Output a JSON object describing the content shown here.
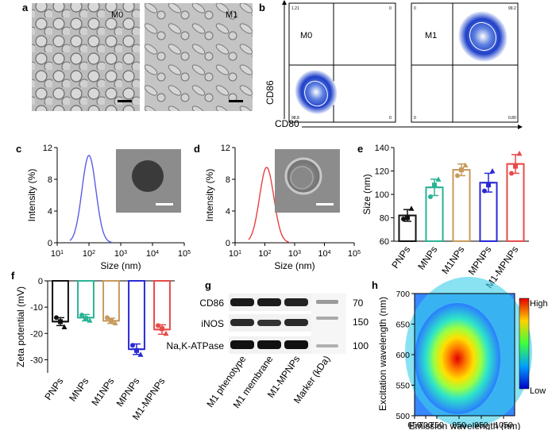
{
  "panels": {
    "a": {
      "label": "a",
      "images": [
        {
          "tag": "M0"
        },
        {
          "tag": "M1"
        }
      ]
    },
    "b": {
      "label": "b",
      "ylabel": "CD86",
      "xlabel": "CD80",
      "plots": [
        {
          "tag": "M0",
          "q_tl": "1.21",
          "q_tr": "0",
          "q_bl": "98.8",
          "q_br": "0"
        },
        {
          "tag": "M1",
          "q_tl": "0",
          "q_tr": "99.2",
          "q_bl": "0",
          "q_br": "0.80"
        }
      ]
    },
    "c": {
      "label": "c"
    },
    "d": {
      "label": "d"
    },
    "e": {
      "label": "e"
    },
    "f": {
      "label": "f"
    },
    "g": {
      "label": "g",
      "rows": [
        "CD86",
        "iNOS",
        "Na,K-ATPase"
      ],
      "mw": [
        "70",
        "150",
        "100"
      ],
      "lanes": [
        "M1 phenotype",
        "M1 membrane",
        "M1-MPNPs",
        "Marker (kDa)"
      ]
    },
    "h": {
      "label": "h",
      "xlabel": "Emission wavelength (nm)",
      "ylabel": "Excitation wavelength (nm)",
      "xticks": [
        "650",
        "700",
        "750",
        "850",
        "950",
        "1050"
      ],
      "yticks": [
        "500",
        "550",
        "600",
        "650",
        "700"
      ],
      "colorbar": {
        "high": "High",
        "low": "Low"
      }
    }
  },
  "chart_data": [
    {
      "id": "c",
      "type": "line",
      "xlabel": "Size (nm)",
      "ylabel": "Intensity (%)",
      "xscale": "log",
      "xlim": [
        10,
        100000
      ],
      "ylim": [
        0,
        12
      ],
      "xticks": [
        "10^1",
        "10^2",
        "10^3",
        "10^4",
        "10^5"
      ],
      "yticks": [
        "0",
        "4",
        "8",
        "12"
      ],
      "color": "#5b5be8",
      "peak_x": 100,
      "peak_y": 11,
      "log_sigma": 0.22,
      "x": [
        40,
        60,
        80,
        100,
        130,
        180,
        250,
        350
      ],
      "y": [
        0.2,
        3.6,
        8.6,
        11.0,
        9.4,
        4.6,
        1.0,
        0.1
      ]
    },
    {
      "id": "d",
      "type": "line",
      "xlabel": "Size (nm)",
      "ylabel": "Intensity (%)",
      "xscale": "log",
      "xlim": [
        10,
        100000
      ],
      "ylim": [
        0,
        12
      ],
      "xticks": [
        "10^1",
        "10^2",
        "10^3",
        "10^4",
        "10^5"
      ],
      "yticks": [
        "0",
        "4",
        "8",
        "12"
      ],
      "color": "#e84040",
      "peak_x": 115,
      "peak_y": 9.5,
      "log_sigma": 0.24,
      "x": [
        45,
        70,
        90,
        115,
        150,
        200,
        280,
        400
      ],
      "y": [
        0.1,
        3.0,
        7.0,
        9.5,
        8.0,
        4.2,
        1.0,
        0.1
      ]
    },
    {
      "id": "e",
      "type": "bar",
      "ylabel": "Size (nm)",
      "ylim": [
        60,
        140
      ],
      "yticks": [
        "60",
        "80",
        "100",
        "120",
        "140"
      ],
      "categories": [
        "PNPs",
        "MNPs",
        "M1NPs",
        "MPNPs",
        "M1-MPNPs"
      ],
      "values": [
        82,
        106,
        121,
        110,
        126
      ],
      "errors": [
        5,
        7,
        5,
        8,
        8
      ],
      "colors": [
        "#111111",
        "#2ab394",
        "#c79a5d",
        "#2a2ad4",
        "#e84a4a"
      ],
      "points": [
        [
          79,
          80,
          88
        ],
        [
          98,
          108,
          113
        ],
        [
          116,
          121,
          125
        ],
        [
          103,
          108,
          120
        ],
        [
          118,
          124,
          135
        ]
      ]
    },
    {
      "id": "f",
      "type": "bar",
      "ylabel": "Zeta potential (mV)",
      "ylim": [
        -35,
        0
      ],
      "yticks": [
        "0",
        "-10",
        "-20",
        "-30"
      ],
      "categories": [
        "PNPs",
        "MNPs",
        "M1NPs",
        "MPNPs",
        "M1-MPNPs"
      ],
      "values": [
        -15.5,
        -14.0,
        -15.2,
        -26.0,
        -18.5
      ],
      "errors": [
        1.5,
        1.2,
        1.0,
        2.0,
        1.8
      ],
      "colors": [
        "#111111",
        "#2ab394",
        "#c79a5d",
        "#2a2ad4",
        "#e84a4a"
      ],
      "points": [
        [
          -14,
          -15.5,
          -17.5
        ],
        [
          -13,
          -14.3,
          -15.0
        ],
        [
          -14,
          -15.2,
          -16.0
        ],
        [
          -24.5,
          -26.5,
          -28
        ],
        [
          -17,
          -18.2,
          -20
        ]
      ]
    }
  ]
}
